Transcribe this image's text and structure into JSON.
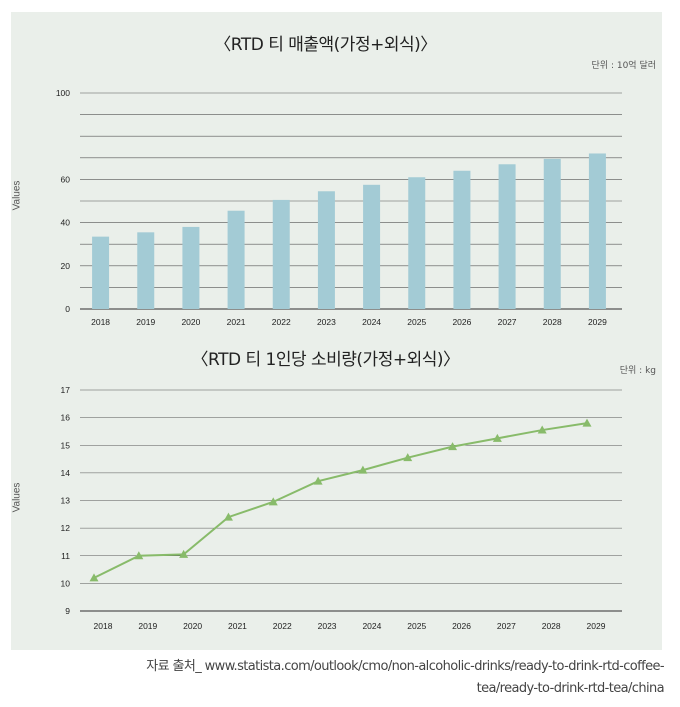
{
  "colors": {
    "panel_bg": "#eaefea",
    "bar": "#a3cbd5",
    "line": "#88bb6a",
    "grid": "#555555"
  },
  "chart_data": [
    {
      "type": "bar",
      "title": "〈RTD 티 매출액(가정+외식)〉",
      "unit": "단위 : 10억 달러",
      "ylabel": "Values",
      "categories": [
        "2018",
        "2019",
        "2020",
        "2021",
        "2022",
        "2023",
        "2024",
        "2025",
        "2026",
        "2027",
        "2028",
        "2029"
      ],
      "values": [
        33.5,
        35.5,
        38,
        45.5,
        50.5,
        54.5,
        57.5,
        61,
        64,
        67,
        69.5,
        72
      ],
      "ylim": [
        0,
        100
      ],
      "yticks": [
        "0",
        "20",
        "40",
        "60",
        "100"
      ],
      "grid": true
    },
    {
      "type": "line",
      "title": "〈RTD 티 1인당 소비량(가정+외식)〉",
      "unit": "단위 : kg",
      "ylabel": "Values",
      "categories": [
        "2018",
        "2019",
        "2020",
        "2021",
        "2022",
        "2023",
        "2024",
        "2025",
        "2026",
        "2027",
        "2028",
        "2029"
      ],
      "values": [
        10.2,
        11.0,
        11.05,
        12.4,
        12.95,
        13.7,
        14.1,
        14.55,
        14.95,
        15.25,
        15.55,
        15.8
      ],
      "ylim": [
        9,
        17
      ],
      "yticks": [
        "9",
        "10",
        "11",
        "12",
        "13",
        "14",
        "15",
        "16",
        "17"
      ],
      "marker": "triangle",
      "grid": true
    }
  ],
  "source": {
    "line1": "자료 출처_ www.statista.com/outlook/cmo/non-alcoholic-drinks/ready-to-drink-rtd-coffee-",
    "line2": "tea/ready-to-drink-rtd-tea/china"
  }
}
